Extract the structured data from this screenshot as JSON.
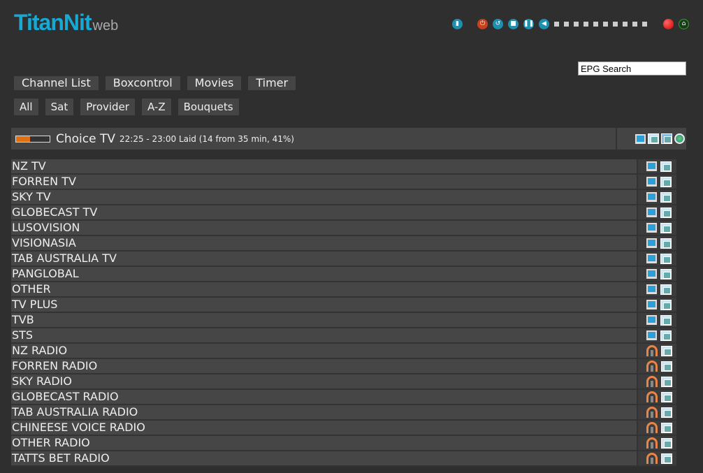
{
  "logo": {
    "title": "TitanNit",
    "suffix": "web"
  },
  "controls": {
    "icons": [
      "remote-icon",
      "power-icon",
      "restart-icon",
      "stop-icon",
      "pause-icon",
      "volume-icon"
    ],
    "volume_level": 0,
    "volume_steps": 10,
    "record": "record-icon",
    "signal": "signal-icon"
  },
  "epg_search": {
    "value": "EPG Search"
  },
  "nav": [
    "Channel List",
    "Boxcontrol",
    "Movies",
    "Timer"
  ],
  "filters": [
    "All",
    "Sat",
    "Provider",
    "A-Z",
    "Bouquets"
  ],
  "now_playing": {
    "channel": "Choice TV",
    "event": "22:25 - 23:00 Laid (14 from 35 min, 41%)",
    "progress": 41,
    "progress_color": "#e07010"
  },
  "bouquets": [
    {
      "name": "NZ TV",
      "type": "tv"
    },
    {
      "name": "FORREN TV",
      "type": "tv"
    },
    {
      "name": "SKY TV",
      "type": "tv"
    },
    {
      "name": "GLOBECAST TV",
      "type": "tv"
    },
    {
      "name": "LUSOVISION",
      "type": "tv"
    },
    {
      "name": "VISIONASIA",
      "type": "tv"
    },
    {
      "name": "TAB AUSTRALIA TV",
      "type": "tv"
    },
    {
      "name": "PANGLOBAL",
      "type": "tv"
    },
    {
      "name": "OTHER",
      "type": "tv"
    },
    {
      "name": "TV PLUS",
      "type": "tv"
    },
    {
      "name": "TVB",
      "type": "tv"
    },
    {
      "name": "STS",
      "type": "tv"
    },
    {
      "name": "NZ RADIO",
      "type": "radio"
    },
    {
      "name": "FORREN RADIO",
      "type": "radio"
    },
    {
      "name": "SKY RADIO",
      "type": "radio"
    },
    {
      "name": "GLOBECAST RADIO",
      "type": "radio"
    },
    {
      "name": "TAB AUSTRALIA RADIO",
      "type": "radio"
    },
    {
      "name": "CHINEESE VOICE RADIO",
      "type": "radio"
    },
    {
      "name": "OTHER RADIO",
      "type": "radio"
    },
    {
      "name": "TATTS BET RADIO",
      "type": "radio"
    }
  ]
}
